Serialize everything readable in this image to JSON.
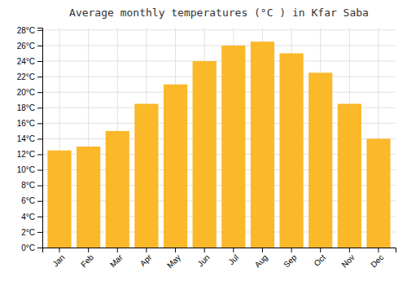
{
  "chart_data": {
    "type": "bar",
    "title": "Average monthly temperatures (°C ) in Kfar Saba",
    "categories": [
      "Jan",
      "Feb",
      "Mar",
      "Apr",
      "May",
      "Jun",
      "Jul",
      "Aug",
      "Sep",
      "Oct",
      "Nov",
      "Dec"
    ],
    "values": [
      12.5,
      13.0,
      15.0,
      18.5,
      21.0,
      24.0,
      26.0,
      26.5,
      25.0,
      22.5,
      18.5,
      14.0
    ],
    "color": "#FBB829",
    "ylim": [
      0,
      28.3
    ],
    "yticks": [
      {
        "value": 0,
        "label": "0°C"
      },
      {
        "value": 2,
        "label": "2°C"
      },
      {
        "value": 4,
        "label": "4°C"
      },
      {
        "value": 6,
        "label": "6°C"
      },
      {
        "value": 8,
        "label": "8°C"
      },
      {
        "value": 10,
        "label": "10°C"
      },
      {
        "value": 12,
        "label": "12°C"
      },
      {
        "value": 14,
        "label": "14°C"
      },
      {
        "value": 16,
        "label": "16°C"
      },
      {
        "value": 18,
        "label": "18°C"
      },
      {
        "value": 20,
        "label": "20°C"
      },
      {
        "value": 22,
        "label": "22°C"
      },
      {
        "value": 24,
        "label": "24°C"
      },
      {
        "value": 26,
        "label": "26°C"
      },
      {
        "value": 28,
        "label": "28°C"
      }
    ],
    "grid": true
  }
}
